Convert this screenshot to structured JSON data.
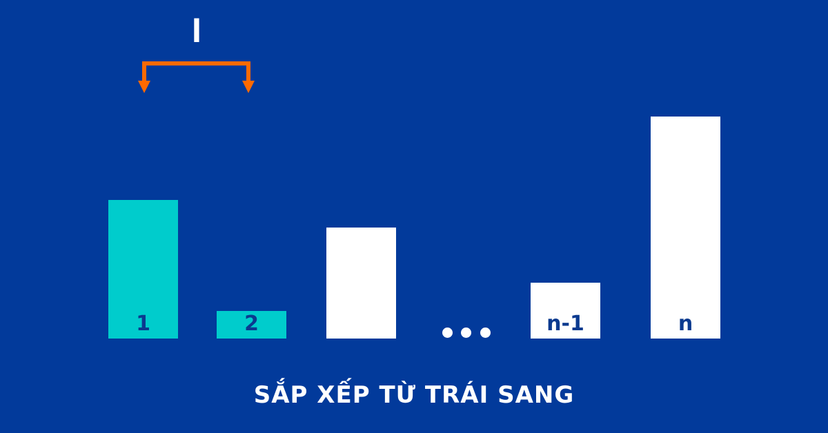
{
  "marker_label": "I",
  "colors": {
    "background": "#023a9b",
    "highlight": "#00cccc",
    "default_bar": "#ffffff",
    "arrow": "#ff6a00",
    "label": "#0b3a8f"
  },
  "bars": [
    {
      "label": "1",
      "height": 201,
      "highlighted": true
    },
    {
      "label": "2",
      "height": 40,
      "highlighted": true
    },
    {
      "label": "",
      "height": 161,
      "highlighted": false
    },
    {
      "label": "n-1",
      "height": 81,
      "highlighted": false
    },
    {
      "label": "n",
      "height": 322,
      "highlighted": false
    }
  ],
  "ellipsis": "...",
  "title": "SẮP XẾP TỪ TRÁI SANG"
}
